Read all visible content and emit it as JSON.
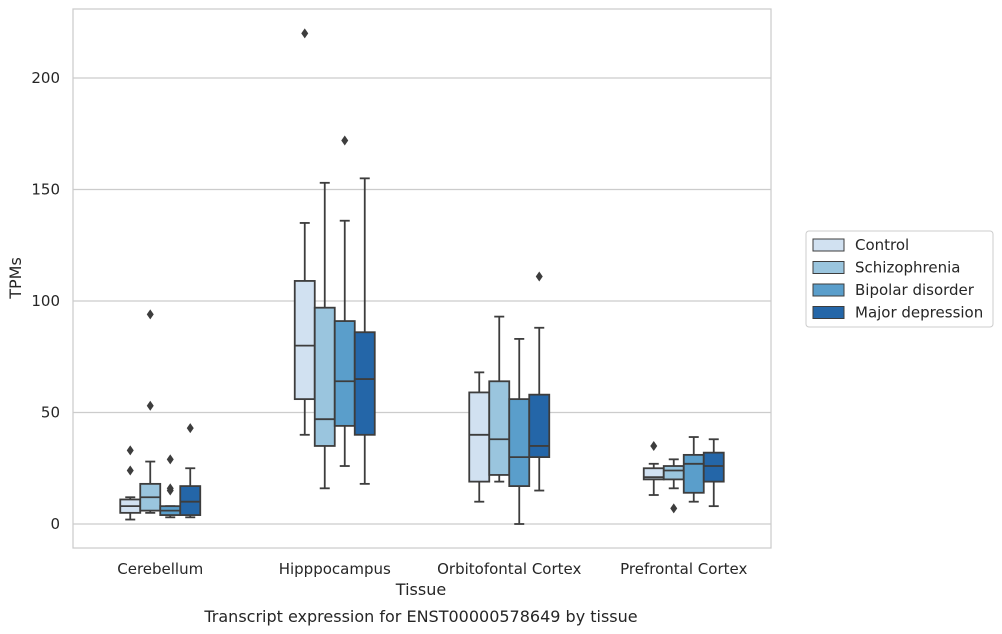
{
  "chart_data": {
    "type": "box",
    "xlabel": "Tissue",
    "ylabel": "TPMs",
    "caption": "Transcript expression for ENST00000578649 by tissue",
    "categories": [
      "Cerebellum",
      "Hipppocampus",
      "Orbitofontal Cortex",
      "Prefrontal Cortex"
    ],
    "ylim": [
      -10,
      231
    ],
    "yticks": [
      0,
      50,
      100,
      150,
      200
    ],
    "grid": true,
    "legend_position": "right",
    "series": [
      {
        "name": "Control",
        "color": "#d1e1f1",
        "boxes": [
          {
            "whisker_low": 2,
            "q1": 5,
            "median": 8,
            "q3": 11,
            "whisker_high": 12,
            "outliers": [
              24,
              33
            ]
          },
          {
            "whisker_low": 40,
            "q1": 56,
            "median": 80,
            "q3": 109,
            "whisker_high": 135,
            "outliers": [
              220
            ]
          },
          {
            "whisker_low": 10,
            "q1": 19,
            "median": 40,
            "q3": 59,
            "whisker_high": 68,
            "outliers": []
          },
          {
            "whisker_low": 13,
            "q1": 20,
            "median": 21,
            "q3": 25,
            "whisker_high": 27,
            "outliers": [
              35
            ]
          }
        ]
      },
      {
        "name": "Schizophrenia",
        "color": "#9ac5de",
        "boxes": [
          {
            "whisker_low": 5,
            "q1": 6,
            "median": 12,
            "q3": 18,
            "whisker_high": 28,
            "outliers": [
              53,
              94
            ]
          },
          {
            "whisker_low": 16,
            "q1": 35,
            "median": 47,
            "q3": 97,
            "whisker_high": 153,
            "outliers": []
          },
          {
            "whisker_low": 19,
            "q1": 22,
            "median": 38,
            "q3": 64,
            "whisker_high": 93,
            "outliers": []
          },
          {
            "whisker_low": 16,
            "q1": 20,
            "median": 24,
            "q3": 26,
            "whisker_high": 29,
            "outliers": [
              7
            ]
          }
        ]
      },
      {
        "name": "Bipolar disorder",
        "color": "#5a9ecb",
        "boxes": [
          {
            "whisker_low": 3,
            "q1": 4,
            "median": 6,
            "q3": 8,
            "whisker_high": 8,
            "outliers": [
              15,
              16,
              29
            ]
          },
          {
            "whisker_low": 26,
            "q1": 44,
            "median": 64,
            "q3": 91,
            "whisker_high": 136,
            "outliers": [
              172
            ]
          },
          {
            "whisker_low": 0,
            "q1": 17,
            "median": 30,
            "q3": 56,
            "whisker_high": 83,
            "outliers": []
          },
          {
            "whisker_low": 10,
            "q1": 14,
            "median": 27,
            "q3": 31,
            "whisker_high": 39,
            "outliers": []
          }
        ]
      },
      {
        "name": "Major depression",
        "color": "#2466a8",
        "boxes": [
          {
            "whisker_low": 3,
            "q1": 4,
            "median": 10,
            "q3": 17,
            "whisker_high": 25,
            "outliers": [
              43
            ]
          },
          {
            "whisker_low": 18,
            "q1": 40,
            "median": 65,
            "q3": 86,
            "whisker_high": 155,
            "outliers": []
          },
          {
            "whisker_low": 15,
            "q1": 30,
            "median": 35,
            "q3": 58,
            "whisker_high": 88,
            "outliers": [
              111
            ]
          },
          {
            "whisker_low": 8,
            "q1": 19,
            "median": 26,
            "q3": 32,
            "whisker_high": 38,
            "outliers": []
          }
        ]
      }
    ]
  }
}
